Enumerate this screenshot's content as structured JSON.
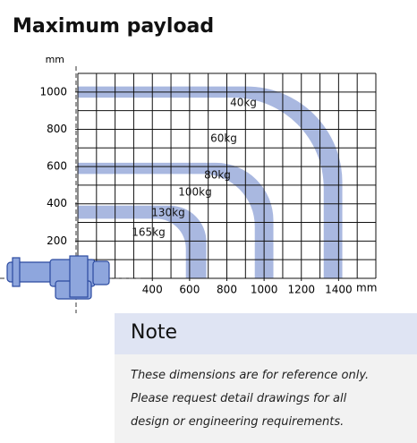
{
  "chart_data": {
    "type": "payload",
    "title": "Maximum payload",
    "x_label": "mm",
    "y_label": "mm",
    "xlim": [
      0,
      1600
    ],
    "ylim": [
      0,
      1100
    ],
    "xticks": [
      400,
      600,
      800,
      1000,
      1200,
      1400
    ],
    "yticks": [
      200,
      400,
      600,
      800,
      1000
    ],
    "grid": true,
    "grid_step": 100,
    "color": "#a9b8e0",
    "series": [
      {
        "name": "40kg",
        "values": [
          1420,
          1030
        ]
      },
      {
        "name": "60kg",
        "values": [
          1320,
          970
        ]
      },
      {
        "name": "80kg",
        "values": [
          1050,
          620
        ]
      },
      {
        "name": "100kg",
        "values": [
          950,
          560
        ]
      },
      {
        "name": "130kg",
        "values": [
          690,
          390
        ]
      },
      {
        "name": "165kg",
        "values": [
          580,
          320
        ]
      }
    ]
  },
  "note": {
    "title": "Note",
    "lines": [
      "These dimensions are for reference only.",
      "Please request detail drawings for all",
      "design or engineering requirements."
    ]
  }
}
